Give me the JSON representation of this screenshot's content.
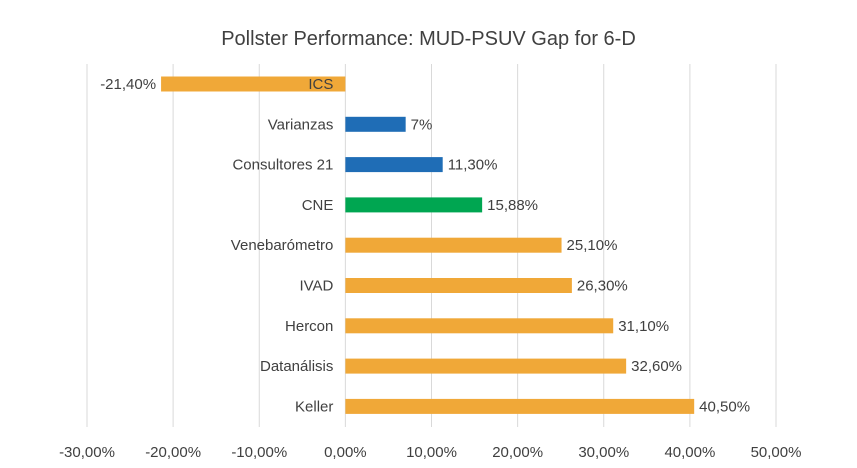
{
  "chart_data": {
    "type": "bar",
    "orientation": "horizontal",
    "title": "Pollster Performance: MUD-PSUV Gap for 6-D",
    "xlabel": "",
    "ylabel": "",
    "xlim": [
      -30,
      50
    ],
    "x_ticks": [
      -30,
      -20,
      -10,
      0,
      10,
      20,
      30,
      40,
      50
    ],
    "x_tick_labels": [
      "-30,00%",
      "-20,00%",
      "-10,00%",
      "0,00%",
      "10,00%",
      "20,00%",
      "30,00%",
      "40,00%",
      "50,00%"
    ],
    "grid": "vertical",
    "legend": "none",
    "categories": [
      "ICS",
      "Varianzas",
      "Consultores 21",
      "CNE",
      "Venebarómetro",
      "IVAD",
      "Hercon",
      "Datanálisis",
      "Keller"
    ],
    "values": [
      -21.4,
      7,
      11.3,
      15.88,
      25.1,
      26.3,
      31.1,
      32.6,
      40.5
    ],
    "value_labels": [
      "-21,40%",
      "7%",
      "11,30%",
      "15,88%",
      "25,10%",
      "26,30%",
      "31,10%",
      "32,60%",
      "40,50%"
    ],
    "bar_colors": [
      "#F0A838",
      "#1F6DB6",
      "#1F6DB6",
      "#00A651",
      "#F0A838",
      "#F0A838",
      "#F0A838",
      "#F0A838",
      "#F0A838"
    ]
  }
}
